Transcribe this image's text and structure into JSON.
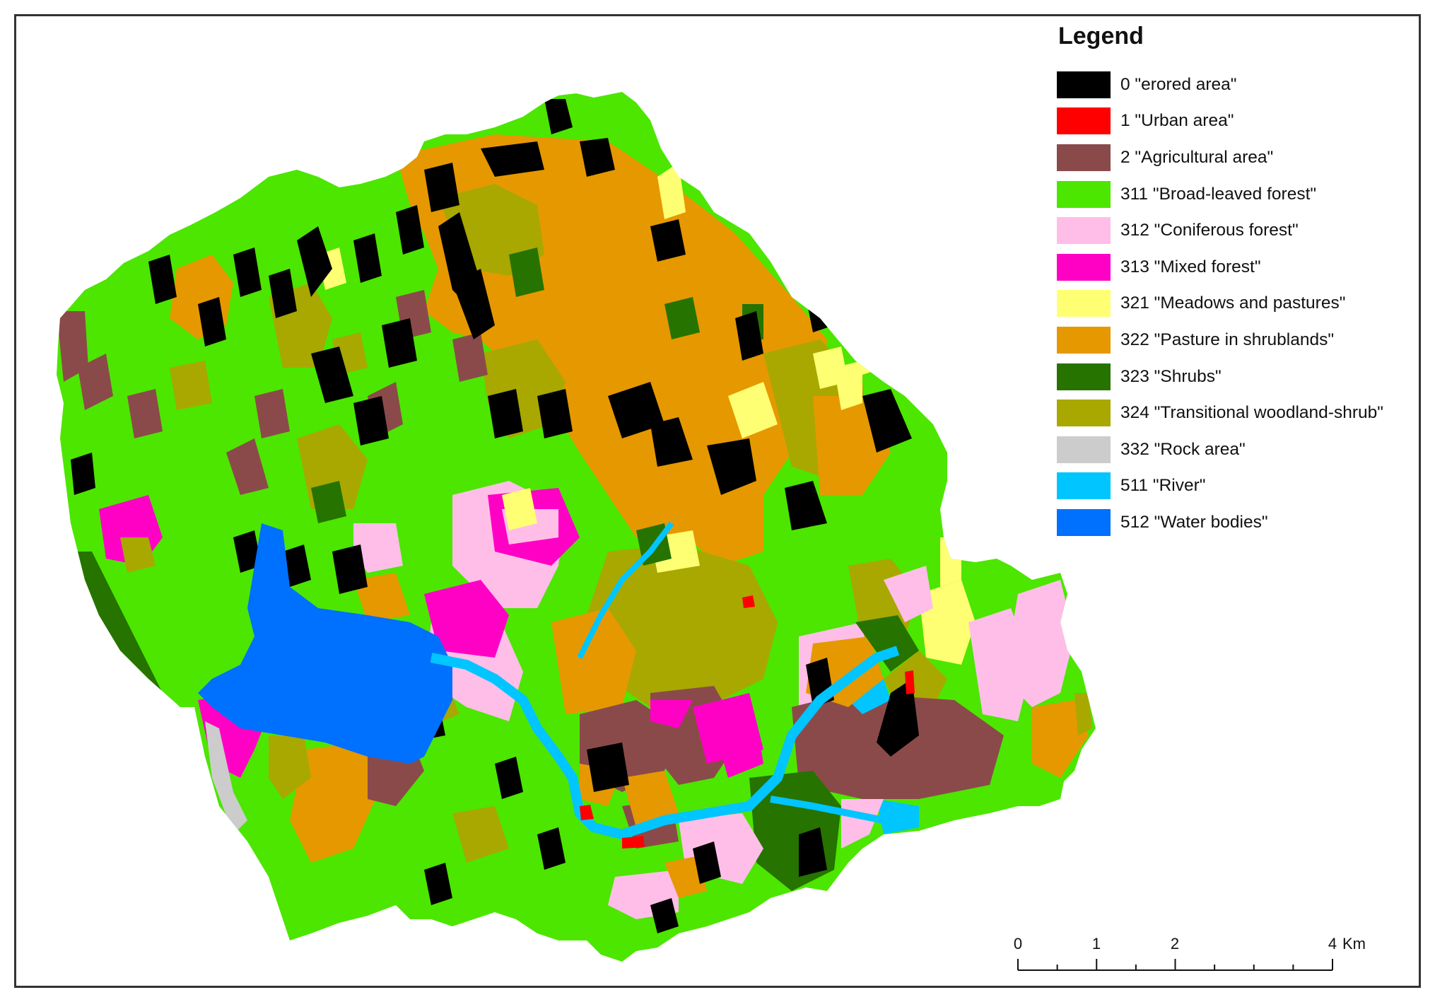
{
  "legend": {
    "title": "Legend",
    "items": [
      {
        "code": "0",
        "label": "0 \"erored area\"",
        "color": "#000000"
      },
      {
        "code": "1",
        "label": "1 \"Urban area\"",
        "color": "#ff0000"
      },
      {
        "code": "2",
        "label": "2 \"Agricultural area\"",
        "color": "#8b4a4a"
      },
      {
        "code": "311",
        "label": "311 \"Broad-leaved forest\"",
        "color": "#4ce600"
      },
      {
        "code": "312",
        "label": "312 \"Coniferous forest\"",
        "color": "#ffbee8"
      },
      {
        "code": "313",
        "label": "313 \"Mixed forest\"",
        "color": "#ff00c5"
      },
      {
        "code": "321",
        "label": "321 \"Meadows and pastures\"",
        "color": "#ffff73"
      },
      {
        "code": "322",
        "label": "322 \"Pasture in shrublands\"",
        "color": "#e69800"
      },
      {
        "code": "323",
        "label": "323 \"Shrubs\"",
        "color": "#267300"
      },
      {
        "code": "324",
        "label": "324 \"Transitional woodland-shrub\"",
        "color": "#a8a800"
      },
      {
        "code": "332",
        "label": "332 \"Rock area\"",
        "color": "#cccccc"
      },
      {
        "code": "511",
        "label": "511 \"River\"",
        "color": "#00c5ff"
      },
      {
        "code": "512",
        "label": "512 \"Water bodies\"",
        "color": "#0070ff"
      }
    ]
  },
  "scale_bar": {
    "ticks": [
      "0",
      "1",
      "2",
      "4"
    ],
    "unit": "Km"
  }
}
